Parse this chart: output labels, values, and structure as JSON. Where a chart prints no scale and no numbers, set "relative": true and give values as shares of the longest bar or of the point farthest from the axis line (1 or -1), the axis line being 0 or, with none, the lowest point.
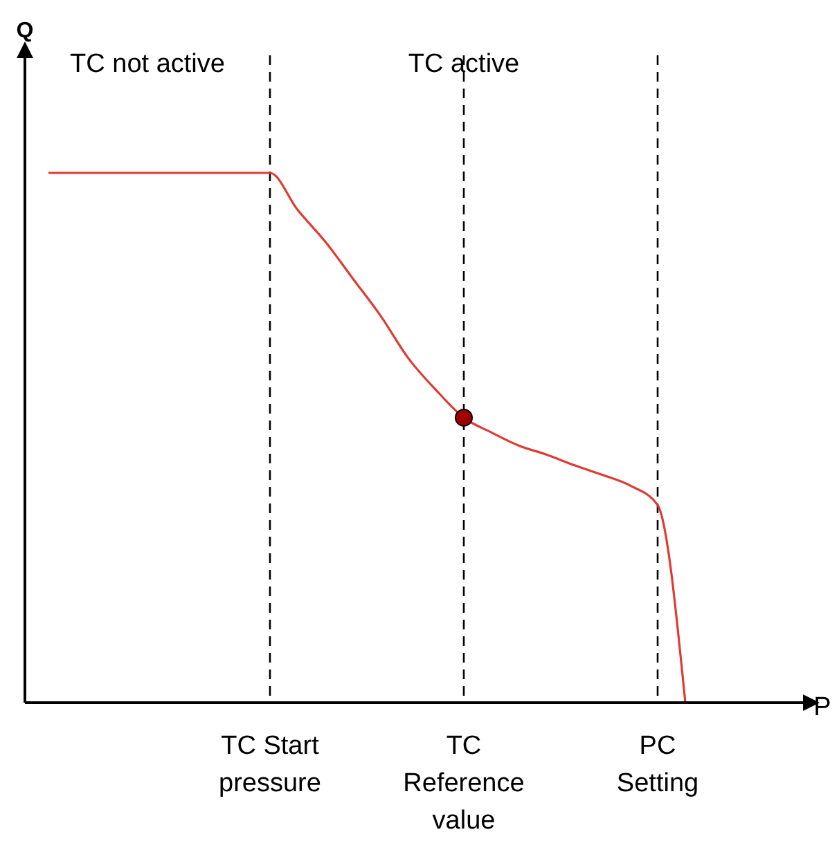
{
  "chart_data": {
    "type": "line",
    "relative": true,
    "xlabel": "P",
    "categories": [
      null,
      null,
      null,
      null,
      null,
      null,
      null,
      null,
      "TC Start pressure",
      null,
      null,
      null,
      null,
      null,
      null,
      "TC Reference value",
      null,
      null,
      null,
      null,
      null,
      null,
      "PC Setting",
      null
    ],
    "series": [
      {
        "color": "#e03a32",
        "values": [
          1,
          1,
          1,
          1,
          1,
          1,
          1,
          1,
          1,
          0.93,
          0.87,
          0.8,
          0.73,
          0.65,
          0.59,
          0.538,
          0.51,
          0.485,
          0.468,
          0.448,
          0.43,
          0.41,
          0.373,
          0
        ]
      },
      {
        "type": "scatter",
        "color": "#a00000",
        "x": [
          "TC Reference value"
        ],
        "values": [
          0.538
        ],
        "marker": "circle"
      }
    ],
    "ref_lines": [
      {
        "axis": "x",
        "value": "TC Start pressure",
        "line_style": "dashed",
        "color": "#000000"
      },
      {
        "axis": "x",
        "value": "TC Reference value",
        "line_style": "dashed",
        "color": "#000000"
      },
      {
        "axis": "x",
        "value": "PC Setting",
        "line_style": "dashed",
        "color": "#000000"
      }
    ],
    "annotations": [
      "TC not active",
      "TC active",
      "Q"
    ]
  }
}
